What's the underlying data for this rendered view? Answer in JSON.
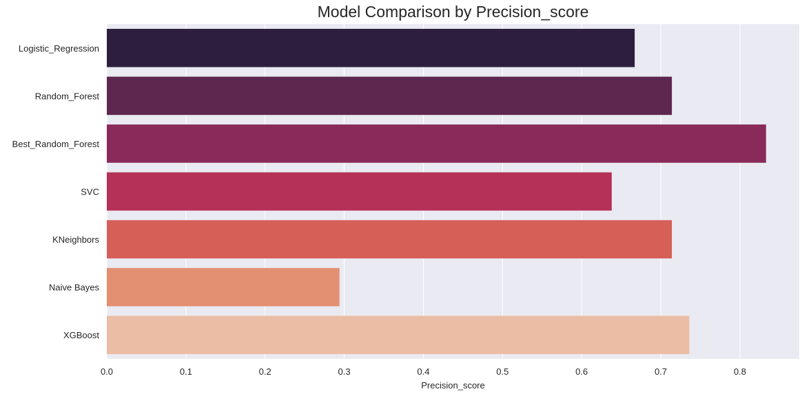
{
  "chart_data": {
    "type": "bar",
    "orientation": "horizontal",
    "title": "Model Comparison by Precision_score",
    "xlabel": "Precision_score",
    "ylabel": "",
    "categories": [
      "Logistic_Regression",
      "Random_Forest",
      "Best_Random_Forest",
      "SVC",
      "KNeighbors",
      "Naive Bayes",
      "XGBoost"
    ],
    "values": [
      0.667,
      0.714,
      0.833,
      0.638,
      0.714,
      0.294,
      0.736
    ],
    "colors": [
      "#2d1e3e",
      "#5e2750",
      "#892a5a",
      "#b53157",
      "#d65f57",
      "#e28f72",
      "#ebbda5"
    ],
    "xlim": [
      0,
      0.875
    ],
    "xticks": [
      0.0,
      0.1,
      0.2,
      0.3,
      0.4,
      0.5,
      0.6,
      0.7,
      0.8
    ],
    "xtick_labels": [
      "0.0",
      "0.1",
      "0.2",
      "0.3",
      "0.4",
      "0.5",
      "0.6",
      "0.7",
      "0.8"
    ],
    "grid": true,
    "background": "#eaeaf2",
    "grid_color": "#ffffff"
  }
}
